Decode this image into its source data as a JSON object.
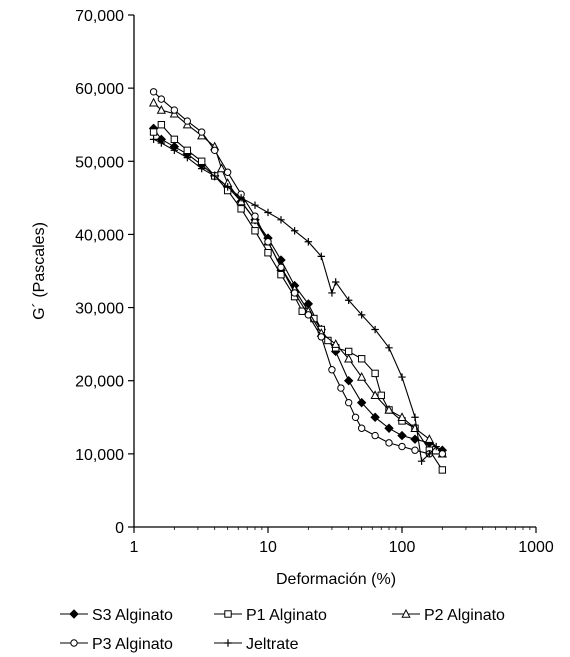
{
  "chart_data": {
    "type": "line",
    "title": "",
    "xlabel": "Deformación (%)",
    "ylabel": "G´ (Pascales)",
    "xscale": "log",
    "xlim": [
      1,
      1000
    ],
    "ylim": [
      0,
      70000
    ],
    "x_ticks": [
      1,
      10,
      100,
      1000
    ],
    "x_tick_labels": [
      "1",
      "10",
      "100",
      "1000"
    ],
    "y_ticks": [
      0,
      10000,
      20000,
      30000,
      40000,
      50000,
      60000,
      70000
    ],
    "y_tick_labels": [
      "0",
      "10,000",
      "20,000",
      "30,000",
      "40,000",
      "50,000",
      "60,000",
      "70,000"
    ],
    "grid": false,
    "legend": "bottom",
    "series": [
      {
        "name": "S3 Alginato",
        "marker": "diamond-filled",
        "points": [
          [
            1.4,
            54500
          ],
          [
            1.6,
            53000
          ],
          [
            2.0,
            52000
          ],
          [
            2.5,
            51000
          ],
          [
            3.2,
            49500
          ],
          [
            4.0,
            48000
          ],
          [
            5.0,
            46500
          ],
          [
            6.3,
            44500
          ],
          [
            8.0,
            42000
          ],
          [
            10,
            39500
          ],
          [
            12.5,
            36500
          ],
          [
            15.8,
            33000
          ],
          [
            20,
            30500
          ],
          [
            25,
            27000
          ],
          [
            32,
            24000
          ],
          [
            40,
            20000
          ],
          [
            50,
            17000
          ],
          [
            63,
            15000
          ],
          [
            80,
            13500
          ],
          [
            100,
            12500
          ],
          [
            125,
            12000
          ],
          [
            160,
            11500
          ],
          [
            200,
            10500
          ]
        ]
      },
      {
        "name": "P1 Alginato",
        "marker": "square-open",
        "points": [
          [
            1.4,
            54000
          ],
          [
            1.6,
            55000
          ],
          [
            2.0,
            53000
          ],
          [
            2.5,
            51500
          ],
          [
            3.2,
            50000
          ],
          [
            4.0,
            48000
          ],
          [
            5.0,
            46000
          ],
          [
            6.3,
            43500
          ],
          [
            8.0,
            40500
          ],
          [
            10,
            37500
          ],
          [
            12.5,
            34500
          ],
          [
            15.8,
            31500
          ],
          [
            18,
            29500
          ],
          [
            22,
            28500
          ],
          [
            25,
            27000
          ],
          [
            28,
            25500
          ],
          [
            32,
            24500
          ],
          [
            40,
            24000
          ],
          [
            50,
            23000
          ],
          [
            63,
            21000
          ],
          [
            70,
            18000
          ],
          [
            80,
            16000
          ],
          [
            100,
            14500
          ],
          [
            125,
            13500
          ],
          [
            160,
            10500
          ],
          [
            200,
            7800
          ]
        ]
      },
      {
        "name": "P2 Alginato",
        "marker": "triangle-open",
        "points": [
          [
            1.4,
            58000
          ],
          [
            1.6,
            57000
          ],
          [
            2.0,
            56500
          ],
          [
            2.5,
            55000
          ],
          [
            3.2,
            53500
          ],
          [
            4.0,
            52000
          ],
          [
            4.5,
            49000
          ],
          [
            5.0,
            47000
          ],
          [
            6.3,
            44500
          ],
          [
            8.0,
            42000
          ],
          [
            10,
            39000
          ],
          [
            12.5,
            35500
          ],
          [
            15.8,
            32500
          ],
          [
            20,
            29500
          ],
          [
            25,
            26500
          ],
          [
            32,
            25000
          ],
          [
            40,
            23000
          ],
          [
            50,
            20500
          ],
          [
            63,
            18000
          ],
          [
            80,
            16000
          ],
          [
            100,
            15000
          ],
          [
            125,
            13500
          ],
          [
            160,
            12000
          ],
          [
            200,
            10000
          ]
        ]
      },
      {
        "name": "P3 Alginato",
        "marker": "circle-open",
        "points": [
          [
            1.4,
            59500
          ],
          [
            1.6,
            58500
          ],
          [
            2.0,
            57000
          ],
          [
            2.5,
            55500
          ],
          [
            3.2,
            54000
          ],
          [
            4.0,
            51500
          ],
          [
            5.0,
            48500
          ],
          [
            6.3,
            45500
          ],
          [
            8.0,
            42500
          ],
          [
            10,
            39000
          ],
          [
            12.5,
            35500
          ],
          [
            15.8,
            32000
          ],
          [
            20,
            29000
          ],
          [
            25,
            26000
          ],
          [
            30,
            21500
          ],
          [
            35,
            19000
          ],
          [
            40,
            17000
          ],
          [
            45,
            15000
          ],
          [
            50,
            13500
          ],
          [
            63,
            12500
          ],
          [
            80,
            11500
          ],
          [
            100,
            11000
          ],
          [
            125,
            10500
          ],
          [
            160,
            10000
          ],
          [
            200,
            10000
          ]
        ]
      },
      {
        "name": "Jeltrate",
        "marker": "plus",
        "points": [
          [
            1.4,
            53000
          ],
          [
            1.6,
            52500
          ],
          [
            2.0,
            51500
          ],
          [
            2.5,
            50500
          ],
          [
            3.2,
            49000
          ],
          [
            4.0,
            48000
          ],
          [
            5.0,
            46500
          ],
          [
            6.3,
            45000
          ],
          [
            8.0,
            44000
          ],
          [
            10,
            43000
          ],
          [
            12.5,
            42000
          ],
          [
            15.8,
            40500
          ],
          [
            20,
            39000
          ],
          [
            25,
            37000
          ],
          [
            30,
            32000
          ],
          [
            32,
            33500
          ],
          [
            40,
            31000
          ],
          [
            50,
            29000
          ],
          [
            63,
            27000
          ],
          [
            80,
            24500
          ],
          [
            100,
            20500
          ],
          [
            125,
            15000
          ],
          [
            140,
            9000
          ],
          [
            160,
            10000
          ],
          [
            180,
            11000
          ]
        ]
      }
    ]
  }
}
